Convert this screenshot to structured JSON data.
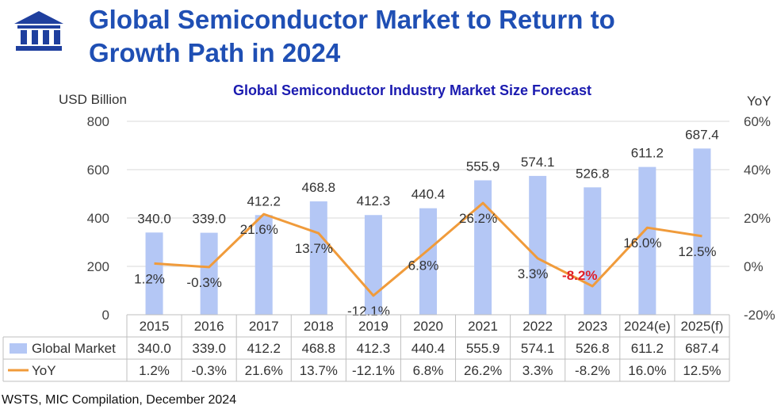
{
  "slide_title_line1": "Global Semiconductor Market to Return to",
  "slide_title_line2": "Growth Path in 2024",
  "logo_icon": "institution-pillars-icon",
  "footnote": "WSTS, MIC Compilation, December 2024",
  "colors": {
    "bar": "#b4c7f5",
    "line": "#f09b3b",
    "title": "#1f4fb4",
    "negative_label": "#e0202a",
    "grid": "#d9d9d9"
  },
  "chart_data": {
    "type": "bar+line",
    "title": "Global Semiconductor Industry Market Size Forecast",
    "y_left_label": "USD Billion",
    "y_right_label": "YoY",
    "y_left_ticks": [
      "800",
      "600",
      "400",
      "200",
      "0"
    ],
    "y_right_ticks": [
      "60%",
      "40%",
      "20%",
      "0%",
      "-20%"
    ],
    "ylim_left": [
      0,
      800
    ],
    "ylim_right": [
      -20,
      60
    ],
    "categories": [
      "2015",
      "2016",
      "2017",
      "2018",
      "2019",
      "2020",
      "2021",
      "2022",
      "2023",
      "2024(e)",
      "2025(f)"
    ],
    "series": [
      {
        "name": "Global Market",
        "type": "bar",
        "axis": "left",
        "values": [
          340.0,
          339.0,
          412.2,
          468.8,
          412.3,
          440.4,
          555.9,
          574.1,
          526.8,
          611.2,
          687.4
        ],
        "labels": [
          "340.0",
          "339.0",
          "412.2",
          "468.8",
          "412.3",
          "440.4",
          "555.9",
          "574.1",
          "526.8",
          "611.2",
          "687.4"
        ]
      },
      {
        "name": "YoY",
        "type": "line",
        "axis": "right",
        "values": [
          1.2,
          -0.3,
          21.6,
          13.7,
          -12.1,
          6.8,
          26.2,
          3.3,
          -8.2,
          16.0,
          12.5
        ],
        "labels": [
          "1.2%",
          "-0.3%",
          "21.6%",
          "13.7%",
          "-12.1%",
          "6.8%",
          "26.2%",
          "3.3%",
          "-8.2%",
          "16.0%",
          "12.5%"
        ],
        "highlight_negative_label": "-8.2%"
      }
    ],
    "grid": true,
    "legend": "data-table-below"
  }
}
